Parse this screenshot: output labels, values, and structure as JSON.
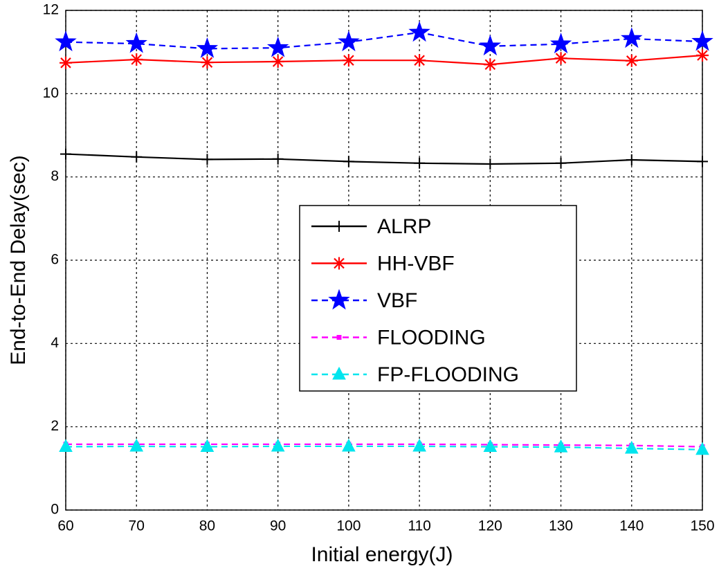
{
  "chart_data": {
    "type": "line",
    "x_label": "Initial energy(J)",
    "y_label": "End-to-End Delay(sec)",
    "x": [
      60,
      70,
      80,
      90,
      100,
      110,
      120,
      130,
      140,
      150
    ],
    "xlim": [
      60,
      150
    ],
    "xticks": [
      60,
      70,
      80,
      90,
      100,
      110,
      120,
      130,
      140,
      150
    ],
    "ylim": [
      0,
      12
    ],
    "yticks": [
      0,
      2,
      4,
      6,
      8,
      10,
      12
    ],
    "grid": true,
    "legend": "center",
    "series": [
      {
        "name": "ALRP",
        "color": "#000000",
        "dash": false,
        "marker": "plus",
        "values": [
          8.55,
          8.48,
          8.42,
          8.43,
          8.37,
          8.33,
          8.31,
          8.33,
          8.41,
          8.37
        ]
      },
      {
        "name": "HH-VBF",
        "color": "#ff0000",
        "dash": false,
        "marker": "asterisk",
        "values": [
          10.74,
          10.82,
          10.75,
          10.77,
          10.8,
          10.8,
          10.7,
          10.85,
          10.79,
          10.92
        ]
      },
      {
        "name": "VBF",
        "color": "#0000ff",
        "dash": true,
        "marker": "star",
        "values": [
          11.24,
          11.2,
          11.08,
          11.1,
          11.24,
          11.47,
          11.14,
          11.19,
          11.32,
          11.25
        ]
      },
      {
        "name": "FLOODING",
        "color": "#ff00ff",
        "dash": true,
        "marker": "square",
        "values": [
          1.58,
          1.58,
          1.58,
          1.58,
          1.58,
          1.58,
          1.57,
          1.56,
          1.55,
          1.52
        ]
      },
      {
        "name": "FP-FLOODING",
        "color": "#00e5ee",
        "dash": true,
        "marker": "triangle",
        "values": [
          1.52,
          1.53,
          1.52,
          1.53,
          1.53,
          1.53,
          1.52,
          1.51,
          1.48,
          1.45
        ]
      }
    ]
  }
}
